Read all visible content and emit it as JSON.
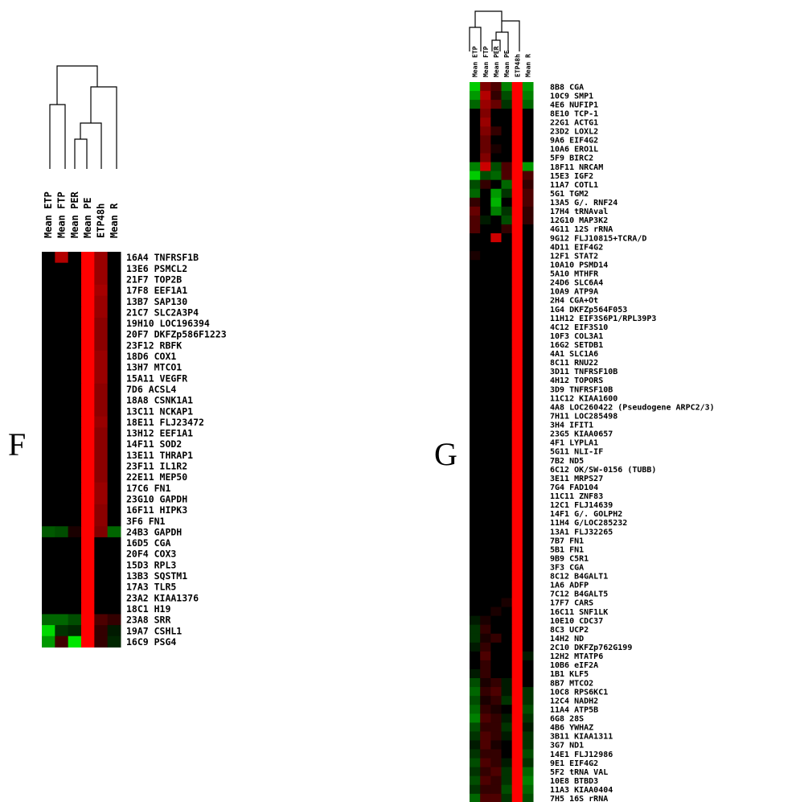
{
  "chart_data": [
    {
      "type": "heatmap",
      "panel_label": "F",
      "columns": [
        "Mean ETP",
        "Mean FTP",
        "Mean PER",
        "Mean PE",
        "ETP48h",
        "Mean R"
      ],
      "rows": [
        "16A4 TNFRSF1B",
        "13E6 PSMCL2",
        "21F7 TOP2B",
        "17F8 EEF1A1",
        "13B7 SAP130",
        "21C7 SLC2A3P4",
        "19H10 LOC196394",
        "20F7 DKFZp586F1223",
        "23F12 RBFK",
        "18D6 COX1",
        "13H7 MTCO1",
        "15A11 VEGFR",
        "7D6 ACSL4",
        "18A8 CSNK1A1",
        "13C11 NCKAP1",
        "18E11 FLJ23472",
        "13H12 EEF1A1",
        "14F11 SOD2",
        "13E11 THRAP1",
        "23F11 IL1R2",
        "22E11 MEP50",
        "17C6 FN1",
        "23G10 GAPDH",
        "16F11 HIPK3",
        "3F6 FN1",
        "24B3 GAPDH",
        "16D5 CGA",
        "20F4 COX3",
        "15D3 RPL3",
        "13B3 SQSTM1",
        "17A3 TLR5",
        "23A2 KIAA1376",
        "18C1 H19",
        "23A8 SRR",
        "19A7 CSHL1",
        "16C9 PSG4"
      ],
      "values": [
        [
          0,
          0.7,
          0,
          1,
          0.6,
          0
        ],
        [
          0,
          0,
          0,
          1,
          0.6,
          0
        ],
        [
          0,
          0,
          0,
          1,
          0.6,
          0
        ],
        [
          0,
          0,
          0,
          1,
          0.65,
          0
        ],
        [
          0,
          0,
          0,
          1,
          0.6,
          0
        ],
        [
          0,
          0,
          0,
          1,
          0.6,
          0
        ],
        [
          0,
          0,
          0,
          1,
          0.55,
          0
        ],
        [
          0,
          0,
          0,
          1,
          0.55,
          0
        ],
        [
          0,
          0,
          0,
          1,
          0.55,
          0
        ],
        [
          0,
          0,
          0,
          1,
          0.6,
          0
        ],
        [
          0,
          0,
          0,
          1,
          0.6,
          0
        ],
        [
          0,
          0,
          0,
          1,
          0.6,
          0
        ],
        [
          0,
          0,
          0,
          1,
          0.55,
          0
        ],
        [
          0,
          0,
          0,
          1,
          0.55,
          0
        ],
        [
          0,
          0,
          0,
          1,
          0.55,
          0
        ],
        [
          0,
          0,
          0,
          1,
          0.6,
          0
        ],
        [
          0,
          0,
          0,
          1,
          0.55,
          0
        ],
        [
          0,
          0,
          0,
          1,
          0.55,
          0
        ],
        [
          0,
          0,
          0,
          1,
          0.55,
          0
        ],
        [
          0,
          0,
          0,
          1,
          0.55,
          0
        ],
        [
          0,
          0,
          0,
          1,
          0.55,
          0
        ],
        [
          0,
          0,
          0,
          1,
          0.6,
          0
        ],
        [
          0,
          0,
          0,
          1,
          0.6,
          0
        ],
        [
          0,
          0,
          0,
          1,
          0.55,
          0
        ],
        [
          0,
          0,
          0,
          1,
          0.55,
          0
        ],
        [
          -0.35,
          -0.3,
          0.1,
          1,
          0.5,
          -0.4
        ],
        [
          0,
          0,
          0,
          1,
          0,
          0
        ],
        [
          0,
          0,
          0,
          1,
          0,
          0
        ],
        [
          0,
          0,
          0,
          1,
          0,
          0
        ],
        [
          0,
          0,
          0,
          1,
          0,
          0
        ],
        [
          0,
          0,
          0,
          1,
          0,
          0
        ],
        [
          0,
          0,
          0,
          1,
          0,
          0
        ],
        [
          0,
          0,
          0,
          1,
          0,
          0
        ],
        [
          -0.4,
          -0.4,
          -0.3,
          1,
          0.3,
          0.2
        ],
        [
          -0.85,
          -0.2,
          -0.15,
          1,
          0.2,
          -0.1
        ],
        [
          -0.6,
          0.25,
          -0.9,
          1,
          0.2,
          -0.15
        ]
      ]
    },
    {
      "type": "heatmap",
      "panel_label": "G",
      "columns": [
        "Mean ETP",
        "Mean FTP",
        "Mean PER",
        "Mean PE",
        "ETP48h",
        "Mean R"
      ],
      "rows": [
        "8B8 CGA",
        "10C9 SMP1",
        "4E6 NUFIP1",
        "8E10 TCP-1",
        "22G1 ACTG1",
        "23D2 LOXL2",
        "9A6 EIF4G2",
        "10A6 ERO1L",
        "5F9 BIRC2",
        "18F11 NRCAM",
        "15E3 IGF2",
        "11A7 COTL1",
        "5G1 TGM2",
        "13A5 G/. RNF24",
        "17H4 tRNAval",
        "12G10 MAP3K2",
        "4G11 12S rRNA",
        "9G12 FLJ10815+TCRA/D",
        "4D11 EIF4G2",
        "12F1 STAT2",
        "10A10 PSMD14",
        "5A10 MTHFR",
        "24D6 SLC6A4",
        "10A9 ATP9A",
        "2H4 CGA+Ot",
        "1G4 DKFZp564F053",
        "11H12 EIF3S6P1/RPL39P3",
        "4C12 EIF3S10",
        "10F3 COL3A1",
        "16G2 SETDB1",
        "4A1 SLC1A6",
        "8C11 RNU22",
        "3D11 TNFRSF10B",
        "4H12 TOPORS",
        "3D9 TNFRSF10B",
        "11C12 KIAA1600",
        "4A8 LOC260422 (Pseudogene ARPC2/3)",
        "7H11 LOC285498",
        "3H4 IFIT1",
        "23G5 KIAA0657",
        "4F1 LYPLA1",
        "5G11 NLI-IF",
        "7B2 ND5",
        "6C12 OK/SW-0156 (TUBB)",
        "3E11 MRPS27",
        "7G4 FAD104",
        "11C11 ZNF83",
        "12C1 FLJ14639",
        "14F1 G/. GOLPH2",
        "11H4 G/LOC285232",
        "13A1 FLJ32265",
        "7B7 FN1",
        "5B1 FN1",
        "9B9 C5R1",
        "3F3 CGA",
        "8C12 B4GALT1",
        "1A6 ADFP",
        "7C12 B4GALT5",
        "17F7 CARS",
        "16C11 SNF1LK",
        "10E10 CDC37",
        "8C3 UCP2",
        "14H2 ND",
        "2C10 DKFZp762G199",
        "12H2 MTATP6",
        "10B6 eIF2A",
        "1B1 KLF5",
        "8B7 MTCO2",
        "10C8 RPS6KC1",
        "12C4 NADH2",
        "11A4 ATP5B",
        "6G8 28S",
        "4B6 YWHAZ",
        "3B11 KIAA1311",
        "3G7 ND1",
        "14E1 FLJ12986",
        "9E1 EIF4G2",
        "5F2 tRNA VAL",
        "10E8 BTBD3",
        "11A3 KIAA0404",
        "7H5 16S rRNA"
      ],
      "values": [
        [
          -0.8,
          0.5,
          0.3,
          -0.5,
          1,
          -0.6
        ],
        [
          -0.6,
          0.7,
          0.2,
          -0.3,
          1,
          -0.5
        ],
        [
          -0.4,
          0.6,
          0.4,
          -0.2,
          1,
          -0.4
        ],
        [
          0,
          0.5,
          0,
          0,
          1,
          0
        ],
        [
          0,
          0.6,
          0,
          0,
          1,
          0
        ],
        [
          0,
          0.5,
          0.2,
          0,
          1,
          0
        ],
        [
          0,
          0.4,
          0,
          0,
          1,
          0
        ],
        [
          0,
          0.4,
          0.1,
          0,
          1,
          0
        ],
        [
          0,
          0.5,
          0,
          0,
          1,
          0
        ],
        [
          -0.5,
          0.8,
          -0.3,
          0.3,
          1,
          -0.6
        ],
        [
          -0.8,
          -0.3,
          -0.4,
          0.3,
          1,
          0.3
        ],
        [
          -0.3,
          0.2,
          0,
          -0.4,
          1,
          0.2
        ],
        [
          -0.4,
          0,
          -0.6,
          -0.2,
          1,
          0.3
        ],
        [
          0.2,
          0,
          -0.7,
          0,
          1,
          0.3
        ],
        [
          0.4,
          0,
          -0.5,
          -0.2,
          1,
          0.2
        ],
        [
          0.3,
          -0.1,
          0,
          -0.3,
          1,
          0.2
        ],
        [
          0.3,
          0,
          0,
          0.2,
          1,
          0
        ],
        [
          0,
          0,
          0.8,
          0,
          1,
          0
        ],
        [
          0,
          0,
          0,
          0,
          1,
          0
        ],
        [
          0.1,
          0,
          0,
          0,
          1,
          0
        ],
        [
          0,
          0,
          0,
          0,
          1,
          0
        ],
        [
          0,
          0,
          0,
          0,
          1,
          0
        ],
        [
          0,
          0,
          0,
          0,
          1,
          0
        ],
        [
          0,
          0,
          0,
          0,
          1,
          0
        ],
        [
          0,
          0,
          0,
          0,
          1,
          0
        ],
        [
          0,
          0,
          0,
          0,
          1,
          0
        ],
        [
          0,
          0,
          0,
          0,
          1,
          0
        ],
        [
          0,
          0,
          0,
          0,
          1,
          0
        ],
        [
          0,
          0,
          0,
          0,
          1,
          0
        ],
        [
          0,
          0,
          0,
          0,
          1,
          0
        ],
        [
          0,
          0,
          0,
          0,
          1,
          0
        ],
        [
          0,
          0,
          0,
          0,
          1,
          0
        ],
        [
          0,
          0,
          0,
          0,
          1,
          0
        ],
        [
          0,
          0,
          0,
          0,
          1,
          0
        ],
        [
          0,
          0,
          0,
          0,
          1,
          0
        ],
        [
          0,
          0,
          0,
          0,
          1,
          0
        ],
        [
          0,
          0,
          0,
          0,
          1,
          0
        ],
        [
          0,
          0,
          0,
          0,
          1,
          0
        ],
        [
          0,
          0,
          0,
          0,
          1,
          0
        ],
        [
          0,
          0,
          0,
          0,
          1,
          0
        ],
        [
          0,
          0,
          0,
          0,
          1,
          0
        ],
        [
          0,
          0,
          0,
          0,
          1,
          0
        ],
        [
          0,
          0,
          0,
          0,
          1,
          0
        ],
        [
          0,
          0,
          0,
          0,
          1,
          0
        ],
        [
          0,
          0,
          0,
          0,
          1,
          0
        ],
        [
          0,
          0,
          0,
          0,
          1,
          0
        ],
        [
          0,
          0,
          0,
          0,
          1,
          0
        ],
        [
          0,
          0,
          0,
          0,
          1,
          0
        ],
        [
          0,
          0,
          0,
          0,
          1,
          0
        ],
        [
          0,
          0,
          0,
          0,
          1,
          0
        ],
        [
          0,
          0,
          0,
          0,
          1,
          0
        ],
        [
          0,
          0,
          0,
          0,
          1,
          0
        ],
        [
          0,
          0,
          0,
          0,
          1,
          0
        ],
        [
          0,
          0,
          0,
          0,
          1,
          0
        ],
        [
          0,
          0,
          0,
          0,
          1,
          0
        ],
        [
          0,
          0,
          0,
          0,
          1,
          0
        ],
        [
          0,
          0,
          0,
          0,
          1,
          0
        ],
        [
          0,
          0,
          0,
          0,
          1,
          0
        ],
        [
          0,
          0,
          0,
          0.1,
          1,
          0
        ],
        [
          0,
          0,
          0.1,
          0,
          1,
          0
        ],
        [
          -0.1,
          0.1,
          0,
          0,
          1,
          0
        ],
        [
          -0.2,
          0.2,
          0,
          0,
          1,
          0
        ],
        [
          -0.2,
          0.1,
          0.2,
          0,
          1,
          0
        ],
        [
          -0.1,
          0.2,
          0,
          0,
          1,
          0
        ],
        [
          0,
          0.3,
          0,
          0,
          1,
          -0.1
        ],
        [
          0,
          0.2,
          0,
          0,
          1,
          0
        ],
        [
          -0.1,
          0.2,
          0,
          0,
          1,
          0
        ],
        [
          -0.3,
          0.1,
          0.2,
          -0.1,
          1,
          0
        ],
        [
          -0.4,
          0.2,
          0.3,
          -0.1,
          1,
          -0.2
        ],
        [
          -0.3,
          0.1,
          0.2,
          -0.2,
          1,
          -0.2
        ],
        [
          -0.4,
          0.2,
          0.1,
          0,
          1,
          -0.3
        ],
        [
          -0.5,
          0.3,
          0.2,
          -0.1,
          1,
          -0.2
        ],
        [
          -0.3,
          0.2,
          0.2,
          -0.2,
          1,
          -0.1
        ],
        [
          -0.2,
          0.3,
          0.2,
          -0.1,
          1,
          -0.2
        ],
        [
          -0.1,
          0.3,
          0.1,
          0,
          1,
          -0.2
        ],
        [
          -0.2,
          0.2,
          0.2,
          0,
          1,
          -0.3
        ],
        [
          -0.3,
          0.3,
          0.2,
          -0.1,
          1,
          -0.2
        ],
        [
          -0.2,
          0.2,
          0.3,
          -0.2,
          1,
          -0.4
        ],
        [
          -0.3,
          0.3,
          0.2,
          -0.2,
          1,
          -0.5
        ],
        [
          -0.2,
          0.2,
          0.2,
          -0.3,
          1,
          -0.4
        ],
        [
          -0.4,
          0.3,
          0.3,
          -0.2,
          1,
          -0.3
        ]
      ]
    }
  ]
}
